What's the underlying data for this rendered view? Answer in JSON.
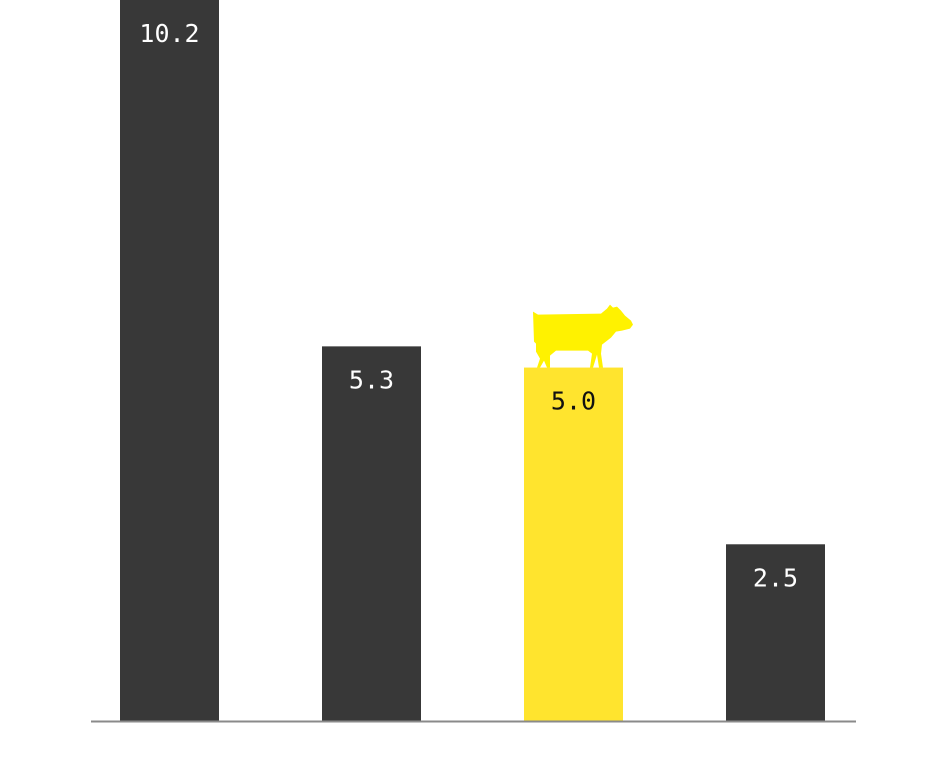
{
  "chart_data": {
    "type": "bar",
    "categories": [
      "",
      "",
      "",
      ""
    ],
    "values": [
      10.2,
      5.3,
      5.0,
      2.5
    ],
    "value_labels": [
      "10.2",
      "5.3",
      "5.0",
      "2.5"
    ],
    "highlight_index": 2,
    "highlight_icon": "cow-icon",
    "colors": {
      "bar": "#383838",
      "highlight": "#ffe42e",
      "icon": "#fff200",
      "label_on_dark": "#ffffff",
      "label_on_highlight": "#111111",
      "axis": "#8a8a8a"
    },
    "title": "",
    "xlabel": "",
    "ylabel": "",
    "ylim": [
      0,
      10.2
    ],
    "grid": false
  }
}
